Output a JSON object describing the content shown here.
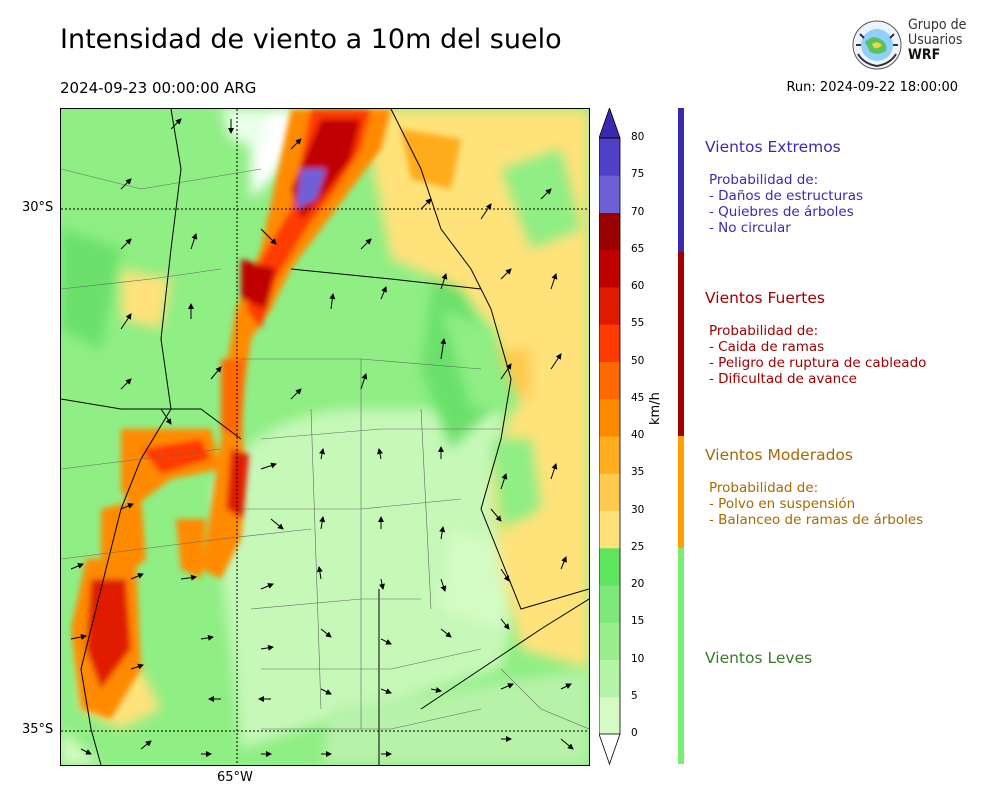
{
  "header": {
    "title": "Intensidad de viento a 10m del suelo",
    "valid_time": "2024-09-23 00:00:00 ARG",
    "run": "Run: 2024-09-22 18:00:00"
  },
  "logo": {
    "line1": "Grupo de",
    "line2": "Usuarios",
    "line3": "WRF"
  },
  "map": {
    "lat_labels": [
      "30°S",
      "35°S"
    ],
    "lon_labels": [
      "65°W"
    ]
  },
  "colorbar": {
    "unit": "km/h",
    "ticks": [
      "0",
      "5",
      "10",
      "15",
      "20",
      "25",
      "30",
      "35",
      "40",
      "45",
      "50",
      "55",
      "60",
      "65",
      "70",
      "75",
      "80"
    ],
    "colors": [
      "#ffffff",
      "#d4fbc4",
      "#b4f4a6",
      "#98ee8c",
      "#7ee87a",
      "#5fe45e",
      "#ffe27a",
      "#ffca4e",
      "#ffac1e",
      "#ff8a00",
      "#ff6a00",
      "#ff3a00",
      "#e01a00",
      "#c00000",
      "#990000",
      "#7060d8",
      "#5040c8",
      "#3a2ab0"
    ]
  },
  "legend": [
    {
      "heading": "Vientos Extremos",
      "color": "#3a2ab0",
      "lines": [
        "Probabilidad de:",
        "- Daños de estructuras",
        "- Quiebres de árboles",
        "- No circular"
      ]
    },
    {
      "heading": "Vientos Fuertes",
      "color": "#a00000",
      "lines": [
        "Probabilidad de:",
        "- Caida de ramas",
        "- Peligro de ruptura de cableado",
        "- Dificultad de avance"
      ]
    },
    {
      "heading": "Vientos Moderados",
      "color": "#a86a00",
      "lines": [
        "Probabilidad de:",
        "- Polvo en suspensión",
        "- Balanceo de ramas de árboles"
      ]
    },
    {
      "heading": "Vientos Leves",
      "color": "#3a7a2a",
      "lines": []
    }
  ]
}
